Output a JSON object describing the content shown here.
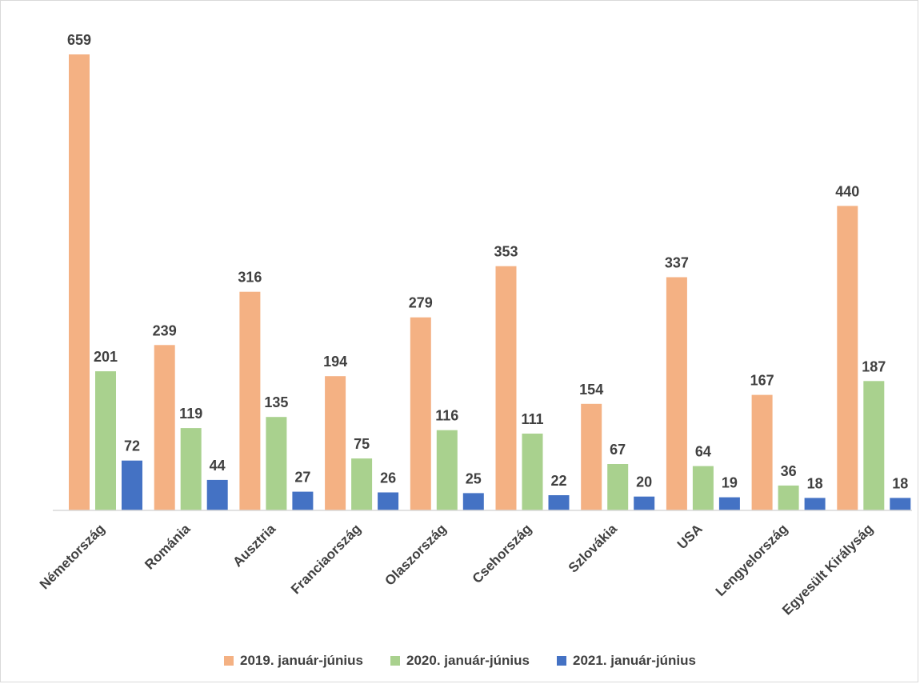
{
  "chart_data": {
    "type": "bar",
    "categories": [
      "Németország",
      "Románia",
      "Ausztria",
      "Franciaország",
      "Olaszország",
      "Csehország",
      "Szlovákia",
      "USA",
      "Lengyelország",
      "Egyesült Királyság"
    ],
    "series": [
      {
        "name": "2019. január-június",
        "color": "#F4B183",
        "values": [
          659,
          239,
          316,
          194,
          279,
          353,
          154,
          337,
          167,
          440
        ]
      },
      {
        "name": "2020. január-június",
        "color": "#A9D18E",
        "values": [
          201,
          119,
          135,
          75,
          116,
          111,
          67,
          64,
          36,
          187
        ]
      },
      {
        "name": "2021. január-június",
        "color": "#4472C4",
        "values": [
          72,
          44,
          27,
          26,
          25,
          22,
          20,
          19,
          18,
          18
        ]
      }
    ],
    "data_labels": true,
    "legend_position": "bottom",
    "grid": false
  }
}
